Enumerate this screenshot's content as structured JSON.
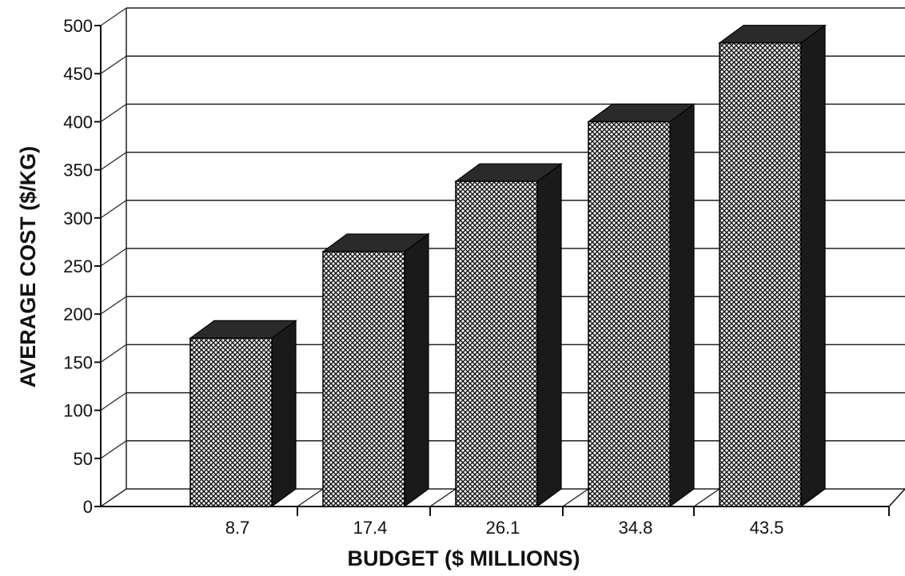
{
  "chart_data": {
    "type": "bar",
    "categories": [
      "8.7",
      "17.4",
      "26.1",
      "34.8",
      "43.5"
    ],
    "values": [
      175,
      265,
      338,
      400,
      482
    ],
    "xlabel": "BUDGET ($ MILLIONS)",
    "ylabel": "AVERAGE COST ($/KG)",
    "ylim": [
      0,
      500
    ],
    "yticks": [
      "0",
      "50",
      "100",
      "150",
      "200",
      "250",
      "300",
      "350",
      "400",
      "450",
      "500"
    ],
    "grid": true,
    "style": "3d",
    "colors": {
      "bar_face": "#ffffff",
      "bar_pattern": "#111111",
      "bar_side": "#1a1a1a",
      "bar_top": "#2a2a2a",
      "grid": "#222222"
    }
  }
}
